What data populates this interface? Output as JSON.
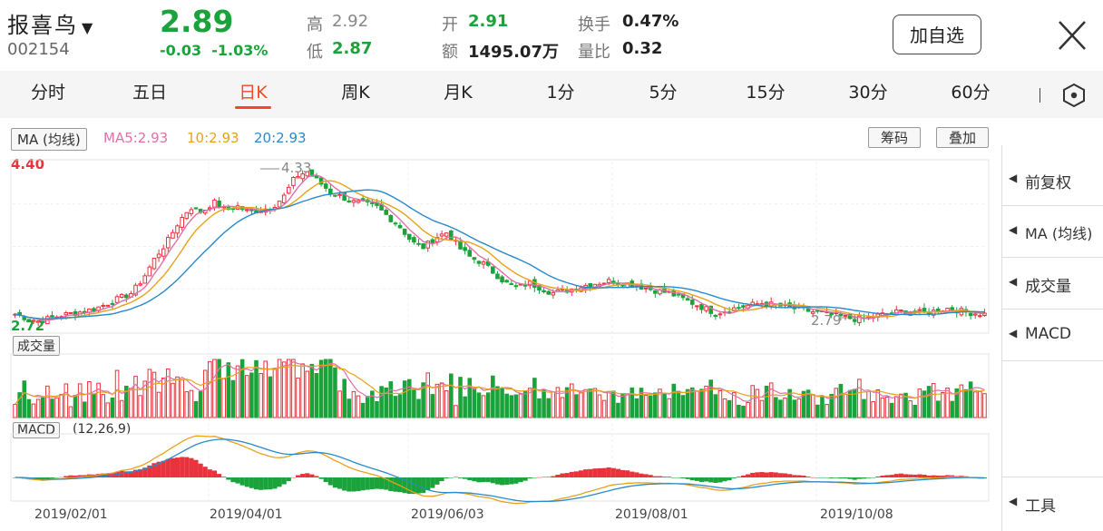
{
  "header": {
    "stock_name": "报喜鸟",
    "stock_code": "002154",
    "price": "2.89",
    "change": "-0.03",
    "change_pct": "-1.03%",
    "high_label": "高",
    "high_value": "2.92",
    "low_label": "低",
    "low_value": "2.87",
    "open_label": "开",
    "open_value": "2.91",
    "amount_label": "额",
    "amount_value": "1495.07万",
    "turnover_label": "换手",
    "turnover_value": "0.47%",
    "volratio_label": "量比",
    "volratio_value": "0.32",
    "add_watch_label": "加自选"
  },
  "tabs": [
    {
      "label": "分时"
    },
    {
      "label": "五日"
    },
    {
      "label": "日K",
      "active": true
    },
    {
      "label": "周K"
    },
    {
      "label": "月K"
    },
    {
      "label": "1分"
    },
    {
      "label": "5分"
    },
    {
      "label": "15分"
    },
    {
      "label": "30分"
    },
    {
      "label": "60分"
    }
  ],
  "ma_legend": {
    "label": "MA (均线)",
    "ma5": "MA5:2.93",
    "ma10": "10:2.93",
    "ma20": "20:2.93"
  },
  "buttons": {
    "chips": "筹码",
    "overlay": "叠加"
  },
  "price_axis": {
    "max_label": "4.40",
    "min_label": "2.72",
    "max": 4.4,
    "min": 2.72
  },
  "annotations": {
    "high_mark": "4.33",
    "low_mark": "2.79"
  },
  "volume_label": "成交量",
  "macd_label": "MACD",
  "macd_params": "(12,26,9)",
  "dates": [
    "2019/02/01",
    "2019/04/01",
    "2019/06/03",
    "2019/08/01",
    "2019/10/08"
  ],
  "side_menu": [
    {
      "label": "前复权"
    },
    {
      "label": "MA (均线)"
    },
    {
      "label": "成交量"
    },
    {
      "label": "MACD"
    }
  ],
  "tools_label": "工具",
  "colors": {
    "up": "#e8323c",
    "down": "#1aa33a",
    "ma5": "#e26fa8",
    "ma10": "#e6a21c",
    "ma20": "#2a8ac9",
    "accent": "#f04b20"
  },
  "chart_data": {
    "type": "candlestick",
    "x_start_label": "2019/02/01",
    "close_path": [
      2.89,
      2.85,
      2.82,
      2.85,
      2.88,
      2.9,
      2.92,
      2.95,
      3.0,
      3.05,
      3.1,
      3.25,
      3.45,
      3.6,
      3.8,
      3.95,
      3.9,
      4.0,
      3.92,
      3.96,
      3.9,
      3.92,
      3.95,
      4.05,
      4.25,
      4.3,
      4.2,
      4.1,
      4.05,
      4.0,
      3.98,
      3.95,
      3.85,
      3.75,
      3.6,
      3.55,
      3.65,
      3.7,
      3.55,
      3.45,
      3.4,
      3.3,
      3.2,
      3.15,
      3.2,
      3.15,
      3.1,
      3.12,
      3.15,
      3.18,
      3.2,
      3.22,
      3.2,
      3.18,
      3.15,
      3.12,
      3.1,
      3.05,
      3.0,
      2.95,
      2.9,
      2.93,
      2.96,
      2.98,
      3.0,
      2.98,
      2.96,
      2.94,
      2.92,
      2.9,
      2.88,
      2.86,
      2.84,
      2.85,
      2.88,
      2.9,
      2.92,
      2.91,
      2.9,
      2.93,
      2.95,
      2.92,
      2.9,
      2.89
    ]
  }
}
